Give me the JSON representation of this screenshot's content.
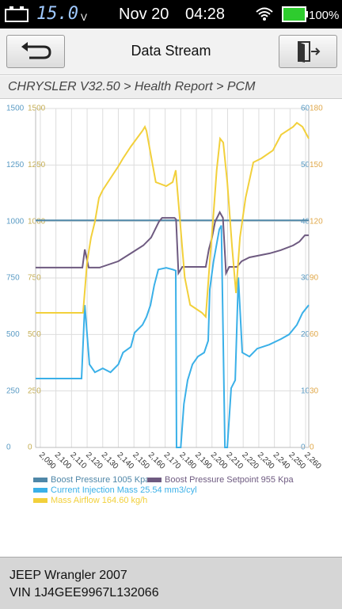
{
  "status_bar": {
    "voltage": "15.0",
    "voltage_unit": "V",
    "date": "Nov 20",
    "time": "04:28",
    "battery": "100%"
  },
  "header": {
    "title": "Data Stream"
  },
  "breadcrumb": "CHRYSLER V32.50 > Health Report > PCM",
  "chart_data": {
    "type": "line",
    "grid": true,
    "xlim": [
      2087,
      2262
    ],
    "xticks": [
      {
        "value": 2090,
        "label": "2,090"
      },
      {
        "value": 2100,
        "label": "2,100"
      },
      {
        "value": 2110,
        "label": "2,110"
      },
      {
        "value": 2120,
        "label": "2,120"
      },
      {
        "value": 2130,
        "label": "2,130"
      },
      {
        "value": 2140,
        "label": "2,140"
      },
      {
        "value": 2150,
        "label": "2,150"
      },
      {
        "value": 2160,
        "label": "2,160"
      },
      {
        "value": 2170,
        "label": "2,170"
      },
      {
        "value": 2180,
        "label": "2,180"
      },
      {
        "value": 2190,
        "label": "2,190"
      },
      {
        "value": 2200,
        "label": "2,200"
      },
      {
        "value": 2210,
        "label": "2,210"
      },
      {
        "value": 2220,
        "label": "2,220"
      },
      {
        "value": 2230,
        "label": "2,230"
      },
      {
        "value": 2240,
        "label": "2,240"
      },
      {
        "value": 2250,
        "label": "2,250"
      },
      {
        "value": 2260,
        "label": "2,260"
      }
    ],
    "axes": [
      {
        "side": "left",
        "lim": [
          0,
          1500
        ],
        "ticks": [
          0,
          250,
          500,
          750,
          1000,
          1250,
          1500
        ],
        "color": "#5a9bc4"
      },
      {
        "side": "left",
        "lim": [
          0,
          1500
        ],
        "ticks": [
          0,
          250,
          500,
          750,
          1000,
          1250,
          1500
        ],
        "color": "#c4ad52"
      },
      {
        "side": "right",
        "lim": [
          0,
          60
        ],
        "ticks": [
          0,
          10,
          20,
          30,
          40,
          50,
          60
        ],
        "color": "#5a9bc4"
      },
      {
        "side": "right",
        "lim": [
          0,
          180
        ],
        "ticks": [
          0,
          30,
          60,
          90,
          120,
          150,
          180
        ],
        "color": "#e0a84a"
      }
    ],
    "series": [
      {
        "name": "Boost Pressure 1005 Kpa",
        "color": "#4f87a8",
        "axis": 0,
        "x": [
          2087,
          2262
        ],
        "values": [
          1005,
          1005
        ]
      },
      {
        "name": "Boost Pressure Setpoint 955 Kpa",
        "color": "#6e5a80",
        "axis": 1,
        "x": [
          2087,
          2117,
          2118.5,
          2121,
          2128,
          2140,
          2148,
          2156,
          2161,
          2166,
          2168,
          2176,
          2177,
          2178.5,
          2181,
          2196,
          2198,
          2200,
          2202,
          2205,
          2207,
          2209,
          2211,
          2216,
          2219,
          2224,
          2237,
          2244,
          2252,
          2256,
          2259.5,
          2262
        ],
        "values": [
          796,
          796,
          876,
          796,
          796,
          824,
          859,
          894,
          929,
          999,
          1016,
          1016,
          1009,
          771,
          799,
          799,
          876,
          929,
          999,
          1041,
          1016,
          771,
          799,
          799,
          824,
          841,
          859,
          873,
          894,
          911,
          939,
          939
        ]
      },
      {
        "name": "Current Injection Mass 25.54 mm3/cyl",
        "color": "#3ab0e8",
        "axis": 2,
        "x": [
          2087,
          2116.4,
          2118.5,
          2121.5,
          2125,
          2130,
          2135,
          2140,
          2143,
          2148,
          2150.4,
          2155.5,
          2158,
          2160.6,
          2163,
          2165.6,
          2170.7,
          2174.8,
          2176.8,
          2177.3,
          2180,
          2182,
          2184.4,
          2187.5,
          2191,
          2195,
          2197.6,
          2198.6,
          2201,
          2204.7,
          2206,
          2208.3,
          2209.8,
          2212.3,
          2214.9,
          2216.9,
          2219.4,
          2224,
          2229,
          2236.7,
          2244.3,
          2249.4,
          2254.4,
          2258,
          2262
        ],
        "values": [
          12.2,
          12.2,
          25.2,
          14.7,
          13.3,
          14.0,
          13.3,
          14.7,
          16.8,
          17.8,
          20.3,
          21.7,
          23.1,
          25.2,
          28.7,
          31.5,
          31.8,
          31.5,
          31.3,
          0,
          0,
          7.7,
          11.9,
          14.7,
          16.1,
          16.8,
          18.9,
          28.0,
          32.9,
          38.6,
          39.3,
          0,
          0,
          10.5,
          11.9,
          30.1,
          16.8,
          16.1,
          17.5,
          18.2,
          19.2,
          20.0,
          21.7,
          23.8,
          25.2
        ]
      },
      {
        "name": "Mass Airflow 164.60 kg/h",
        "color": "#f2d03b",
        "axis": 3,
        "x": [
          2087,
          2117.4,
          2120,
          2122.5,
          2125,
          2127.6,
          2130,
          2135,
          2140,
          2143,
          2148,
          2155.5,
          2157,
          2158,
          2164,
          2170.7,
          2174.8,
          2176.8,
          2180,
          2182.5,
          2186,
          2193.6,
          2196,
          2198.6,
          2201,
          2203,
          2205.2,
          2207.2,
          2209.8,
          2212.8,
          2215.4,
          2217.9,
          2221.5,
          2226.5,
          2231.6,
          2239,
          2244.3,
          2252,
          2254.4,
          2258,
          2262
        ],
        "values": [
          71.5,
          71.5,
          98.8,
          111.5,
          119.9,
          132.5,
          136.7,
          143.0,
          149.3,
          153.5,
          159.8,
          168.2,
          170.3,
          168.2,
          140.9,
          138.8,
          140.9,
          147.2,
          115.7,
          90.4,
          75.7,
          71.5,
          69.4,
          98.8,
          124.1,
          147.2,
          164.0,
          161.9,
          140.9,
          107.3,
          82.0,
          111.5,
          132.5,
          151.4,
          153.5,
          157.7,
          166.1,
          170.3,
          172.4,
          170.3,
          164.0
        ]
      }
    ]
  },
  "footer": {
    "vehicle": "JEEP Wrangler 2007",
    "vin": "VIN 1J4GEE9967L132066"
  }
}
